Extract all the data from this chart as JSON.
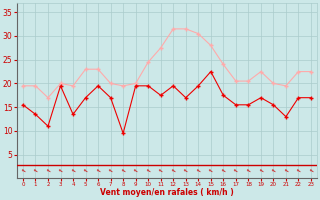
{
  "x": [
    0,
    1,
    2,
    3,
    4,
    5,
    6,
    7,
    8,
    9,
    10,
    11,
    12,
    13,
    14,
    15,
    16,
    17,
    18,
    19,
    20,
    21,
    22,
    23
  ],
  "wind_avg": [
    15.5,
    13.5,
    11,
    19.5,
    13.5,
    17,
    19.5,
    17,
    9.5,
    19.5,
    19.5,
    17.5,
    19.5,
    17,
    19.5,
    22.5,
    17.5,
    15.5,
    15.5,
    17,
    15.5,
    13,
    17,
    17
  ],
  "wind_gust": [
    19.5,
    19.5,
    17,
    20,
    19.5,
    23,
    23,
    20,
    19.5,
    20,
    24.5,
    27.5,
    31.5,
    31.5,
    30.5,
    28,
    24,
    20.5,
    20.5,
    22.5,
    20,
    19.5,
    22.5,
    22.5
  ],
  "bg_color": "#cce8e8",
  "grid_color": "#aacccc",
  "line_avg_color": "#ee0000",
  "line_gust_color": "#ffaaaa",
  "marker_avg_color": "#cc0000",
  "marker_gust_color": "#ffbbbb",
  "xlabel": "Vent moyen/en rafales ( km/h )",
  "ylim": [
    0,
    37
  ],
  "yticks": [
    5,
    10,
    15,
    20,
    25,
    30,
    35
  ],
  "xlim": [
    -0.5,
    23.5
  ],
  "xlabel_color": "#cc0000",
  "tick_color": "#cc0000",
  "axisline_color": "#cc0000"
}
